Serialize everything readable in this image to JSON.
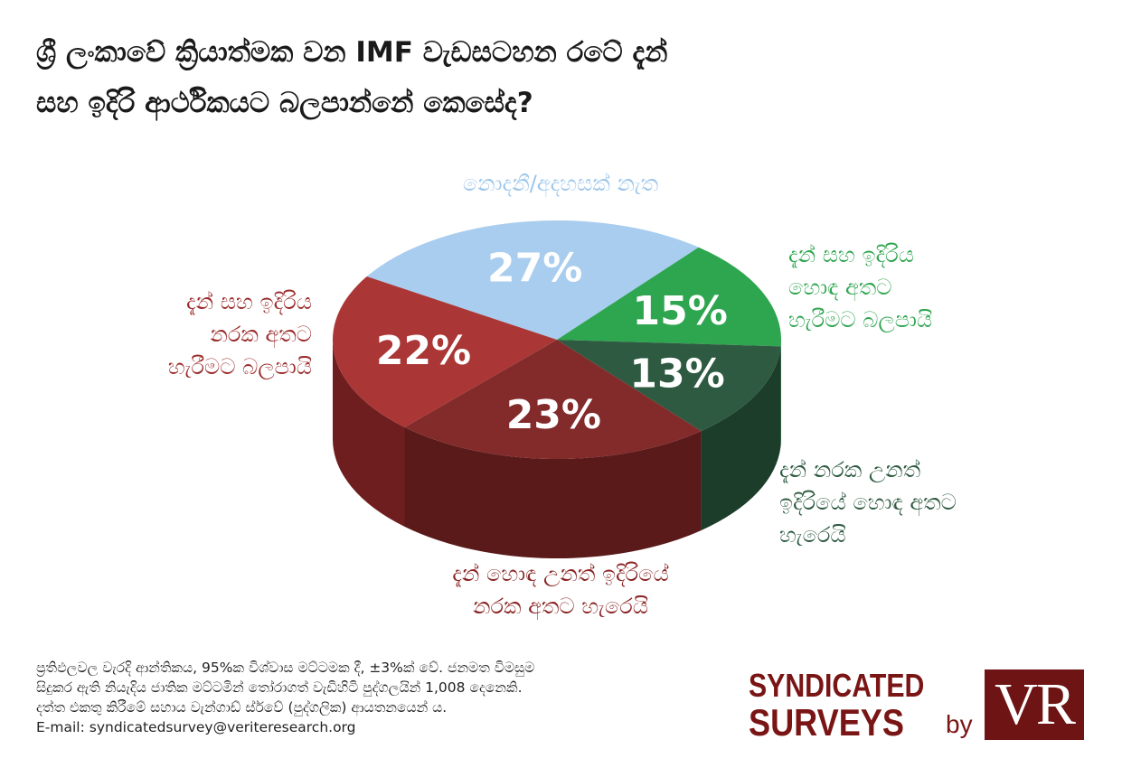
{
  "title_lines": [
    "ශ්‍රී ලංකාවේ ක්‍රියාත්මක වන IMF වැඩසටහන රටේ දැන්",
    "සහ ඉදිරි ආර්ථිකයට බලපාන්නේ කෙසේද?"
  ],
  "chart_data": {
    "type": "pie",
    "title": "ශ්‍රී ලංකාවේ ක්‍රියාත්මක වන IMF වැඩසටහන රටේ දැන් සහ ඉදිරි ආර්ථිකයට බලපාන්නේ කෙසේද?",
    "slices": [
      {
        "key": "unknown",
        "value": 27,
        "value_label": "27%",
        "label": "නොදනී/අදහසක් නැත",
        "color": "#a8cdee",
        "side_color": "#7aa1c4"
      },
      {
        "key": "good",
        "value": 15,
        "value_label": "15%",
        "label_lines": [
          "දැන් සහ ඉදිරිය",
          "හොඳ අතට",
          "හැරීමට බලපායි"
        ],
        "color": "#2ea54f",
        "side_color": "#1f7a3a"
      },
      {
        "key": "better",
        "value": 13,
        "value_label": "13%",
        "label_lines": [
          "දැන් නරක උනත්",
          "ඉදිරියේ හොඳ අතට",
          "හැරෙයි"
        ],
        "color": "#2d5a40",
        "side_color": "#1d3d2b"
      },
      {
        "key": "worse",
        "value": 23,
        "value_label": "23%",
        "label_lines": [
          "දැන් හොඳ උනත් ඉදිරියේ",
          "නරක අතට හැරෙයි"
        ],
        "color": "#832a2a",
        "side_color": "#5a1a1a"
      },
      {
        "key": "bad",
        "value": 22,
        "value_label": "22%",
        "label_lines": [
          "දැන් සහ ඉදිරිය",
          "නරක අතට",
          "හැරීමට බලපායි"
        ],
        "color": "#ab3636",
        "side_color": "#6e1e1e"
      }
    ]
  },
  "footer": {
    "lines": [
      "ප්‍රතිඵලවල වැරදි ආන්තිකය, 95%ක විශ්වාස මට්ටමක දී, ±3%ක් වේ. ජනමත විමසුම",
      "සිදුකර ඇති නියැදිය ජාතික මට්ටමින් තෝරාගත් වැඩිහිටි පුද්ගලයින් 1,008 දෙනෙකි.",
      "දත්ත එකතු කිරීමේ සහාය වැන්ගාඩ් ස්ර්වේ (පුද්ගලික) ආයතනයෙන් ය.",
      "E-mail:  syndicatedsurvey@veriteresearch.org"
    ]
  },
  "brand": {
    "line1": "SYNDICATED",
    "line2": "SURVEYS",
    "by": "by",
    "logo_text": "VR",
    "color": "#7a1515"
  }
}
